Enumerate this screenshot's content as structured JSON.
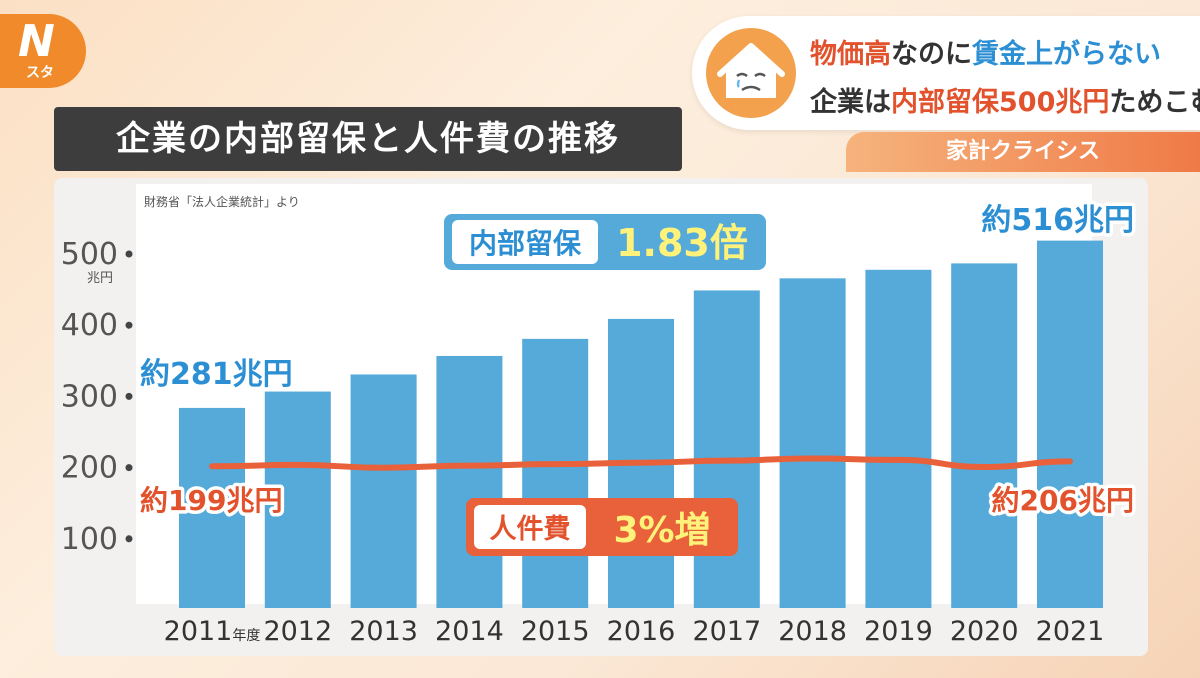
{
  "logo": {
    "letter": "N",
    "sub": "スタ"
  },
  "headline": {
    "line1": [
      {
        "t": "物価高",
        "c": "red"
      },
      {
        "t": "なのに",
        "c": ""
      },
      {
        "t": "賃金上がらない",
        "c": "blue"
      }
    ],
    "line2": [
      {
        "t": "企業は",
        "c": ""
      },
      {
        "t": "内部留保500兆円",
        "c": "red"
      },
      {
        "t": "ためこむ",
        "c": ""
      }
    ]
  },
  "corner_label": "家計クライシス",
  "title": "企業の内部留保と人件費の推移",
  "colors": {
    "bar": "#55aad9",
    "line": "#e8613a",
    "blue_text": "#2c8fd3",
    "red_text": "#e2522c",
    "accent_yellow": "#fff27a"
  },
  "chart_data": {
    "type": "bar",
    "source": "財務省「法人企業統計」より",
    "categories": [
      "2011",
      "2012",
      "2013",
      "2014",
      "2015",
      "2016",
      "2017",
      "2018",
      "2019",
      "2020",
      "2021"
    ],
    "first_category_suffix": "年度",
    "y_unit": "兆円",
    "y_ticks": [
      100,
      200,
      300,
      400,
      500
    ],
    "ylim": [
      0,
      540
    ],
    "series": [
      {
        "name": "内部留保",
        "type": "bar",
        "values": [
          281,
          304,
          328,
          354,
          378,
          406,
          446,
          463,
          475,
          484,
          516
        ]
      },
      {
        "name": "人件費",
        "type": "line",
        "values": [
          199,
          201,
          197,
          200,
          202,
          204,
          207,
          210,
          208,
          198,
          206
        ]
      }
    ],
    "annotations": {
      "retained_start": "約281兆円",
      "retained_end": "約516兆円",
      "labor_start": "約199兆円",
      "labor_end": "約206兆円",
      "retained_badge": {
        "label": "内部留保",
        "value": "1.83倍"
      },
      "labor_badge": {
        "label": "人件費",
        "value": "3%増"
      }
    }
  }
}
